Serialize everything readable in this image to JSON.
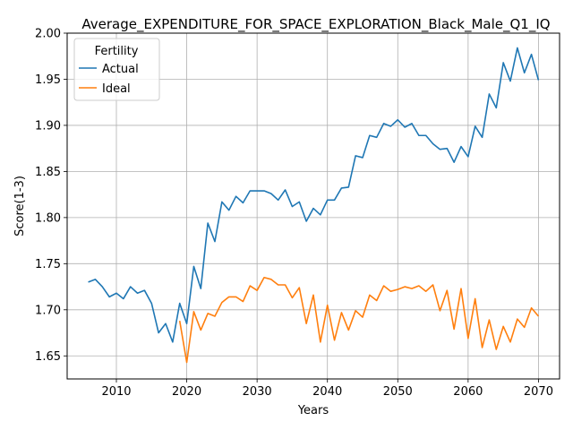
{
  "chart_data": {
    "type": "line",
    "title": "Average_EXPENDITURE_FOR_SPACE_EXPLORATION_Black_Male_Q1_IQ",
    "xlabel": "Years",
    "ylabel": "Score(1-3)",
    "xlim": [
      2003,
      2073
    ],
    "ylim": [
      1.625,
      2.0
    ],
    "xticks": [
      2010,
      2020,
      2030,
      2040,
      2050,
      2060,
      2070
    ],
    "yticks": [
      1.65,
      1.7,
      1.75,
      1.8,
      1.85,
      1.9,
      1.95,
      2.0
    ],
    "grid": true,
    "legend": {
      "title": "Fertility",
      "placement": "upper-left"
    },
    "series": [
      {
        "name": "Actual",
        "color": "#1f77b4",
        "x": [
          2006,
          2007,
          2008,
          2009,
          2010,
          2011,
          2012,
          2013,
          2014,
          2015,
          2016,
          2017,
          2018,
          2019,
          2020,
          2021,
          2022,
          2023,
          2024,
          2025,
          2026,
          2027,
          2028,
          2029,
          2030,
          2031,
          2032,
          2033,
          2034,
          2035,
          2036,
          2037,
          2038,
          2039,
          2040,
          2041,
          2042,
          2043,
          2044,
          2045,
          2046,
          2047,
          2048,
          2049,
          2050,
          2051,
          2052,
          2053,
          2054,
          2055,
          2056,
          2057,
          2058,
          2059,
          2060,
          2061,
          2062,
          2063,
          2064,
          2065,
          2066,
          2067,
          2068,
          2069,
          2070
        ],
        "values": [
          1.73,
          1.733,
          1.725,
          1.714,
          1.718,
          1.712,
          1.725,
          1.718,
          1.721,
          1.707,
          1.675,
          1.685,
          1.665,
          1.707,
          1.685,
          1.747,
          1.723,
          1.794,
          1.774,
          1.817,
          1.808,
          1.823,
          1.816,
          1.829,
          1.829,
          1.829,
          1.826,
          1.819,
          1.83,
          1.812,
          1.817,
          1.796,
          1.81,
          1.803,
          1.819,
          1.819,
          1.832,
          1.833,
          1.867,
          1.865,
          1.889,
          1.887,
          1.902,
          1.899,
          1.906,
          1.898,
          1.902,
          1.889,
          1.889,
          1.88,
          1.874,
          1.875,
          1.86,
          1.877,
          1.866,
          1.899,
          1.887,
          1.934,
          1.919,
          1.968,
          1.948,
          1.984,
          1.957,
          1.977,
          1.949
        ]
      },
      {
        "name": "Ideal",
        "color": "#ff7f0e",
        "x": [
          2019,
          2020,
          2021,
          2022,
          2023,
          2024,
          2025,
          2026,
          2027,
          2028,
          2029,
          2030,
          2031,
          2032,
          2033,
          2034,
          2035,
          2036,
          2037,
          2038,
          2039,
          2040,
          2041,
          2042,
          2043,
          2044,
          2045,
          2046,
          2047,
          2048,
          2049,
          2050,
          2051,
          2052,
          2053,
          2054,
          2055,
          2056,
          2057,
          2058,
          2059,
          2060,
          2061,
          2062,
          2063,
          2064,
          2065,
          2066,
          2067,
          2068,
          2069,
          2070
        ],
        "values": [
          1.688,
          1.643,
          1.698,
          1.678,
          1.696,
          1.693,
          1.708,
          1.714,
          1.714,
          1.709,
          1.726,
          1.721,
          1.735,
          1.733,
          1.727,
          1.727,
          1.713,
          1.724,
          1.685,
          1.716,
          1.665,
          1.705,
          1.667,
          1.697,
          1.678,
          1.699,
          1.692,
          1.716,
          1.71,
          1.726,
          1.72,
          1.722,
          1.725,
          1.723,
          1.726,
          1.72,
          1.727,
          1.699,
          1.721,
          1.679,
          1.723,
          1.669,
          1.712,
          1.659,
          1.689,
          1.657,
          1.682,
          1.665,
          1.69,
          1.681,
          1.702,
          1.693
        ]
      }
    ]
  }
}
